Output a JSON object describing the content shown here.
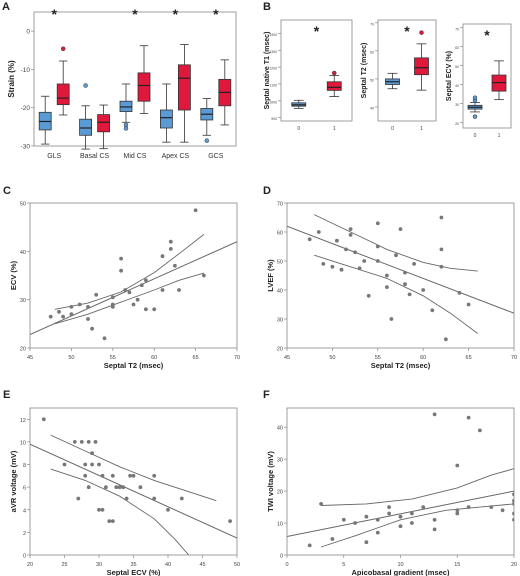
{
  "colors": {
    "group0": "#5b9bd5",
    "group1": "#e0183c",
    "points": "#777777",
    "axis": "#444444",
    "grid": "#cfcfcf"
  },
  "chart_data": [
    {
      "panel": "A",
      "type": "boxplot",
      "ylabel": "Strain (%)",
      "ylim": [
        -30,
        5
      ],
      "yticks": [
        -30,
        -20,
        -10,
        0
      ],
      "categories": [
        "GLS",
        "Basal CS",
        "Mid CS",
        "Apex CS",
        "GCS"
      ],
      "significance": [
        "*",
        "",
        "*",
        "*",
        "*"
      ],
      "groups": [
        {
          "boxes": [
            {
              "min": -29.5,
              "q1": -25.8,
              "median": -23.6,
              "q3": -21.2,
              "max": -17.0,
              "outliers": []
            },
            {
              "min": -30.8,
              "q1": -27.2,
              "median": -25.3,
              "q3": -23.0,
              "max": -19.5,
              "outliers": [
                -14.2
              ]
            },
            {
              "min": -23.8,
              "q1": -21.0,
              "median": -19.8,
              "q3": -18.3,
              "max": -13.8,
              "outliers": [
                -24.5,
                -25.4
              ]
            },
            {
              "min": -29.0,
              "q1": -25.3,
              "median": -22.6,
              "q3": -20.6,
              "max": -13.8,
              "outliers": []
            },
            {
              "min": -27.2,
              "q1": -23.2,
              "median": -21.7,
              "q3": -20.2,
              "max": -17.6,
              "outliers": [
                -28.6
              ]
            }
          ]
        },
        {
          "boxes": [
            {
              "min": -21.9,
              "q1": -19.2,
              "median": -17.5,
              "q3": -13.8,
              "max": -7.8,
              "outliers": [
                -4.6
              ]
            },
            {
              "min": -30.7,
              "q1": -26.3,
              "median": -23.8,
              "q3": -21.8,
              "max": -19.3,
              "outliers": []
            },
            {
              "min": -21.5,
              "q1": -18.3,
              "median": -14.2,
              "q3": -10.9,
              "max": -3.8,
              "outliers": []
            },
            {
              "min": -29.0,
              "q1": -20.6,
              "median": -12.3,
              "q3": -8.8,
              "max": -3.5,
              "outliers": []
            },
            {
              "min": -24.5,
              "q1": -19.5,
              "median": -16.0,
              "q3": -12.6,
              "max": -7.5,
              "outliers": []
            }
          ]
        }
      ]
    },
    {
      "panel": "B",
      "type": "boxplot",
      "ylabel": "Septal native T1 (msec)",
      "categories": [
        "0",
        "1"
      ],
      "ylim": [
        880,
        1480
      ],
      "yticks": [
        900,
        1000,
        1100,
        1200,
        1300,
        1400
      ],
      "significance": "*",
      "boxes": [
        {
          "min": 955,
          "q1": 968,
          "median": 976,
          "q3": 988,
          "max": 1003,
          "outliers": []
        },
        {
          "min": 1025,
          "q1": 1062,
          "median": 1080,
          "q3": 1113,
          "max": 1151,
          "outliers": [
            1165
          ]
        }
      ]
    },
    {
      "panel": "B",
      "type": "boxplot",
      "ylabel": "Septal T2 (msec)",
      "categories": [
        "0",
        "1"
      ],
      "ylim": [
        35,
        71
      ],
      "yticks": [
        40,
        50,
        60,
        70
      ],
      "significance": "*",
      "boxes": [
        {
          "min": 46.5,
          "q1": 48.0,
          "median": 49.0,
          "q3": 50.0,
          "max": 52.0,
          "outliers": []
        },
        {
          "min": 46.0,
          "q1": 51.5,
          "median": 54.0,
          "q3": 57.5,
          "max": 62.5,
          "outliers": [
            66.5
          ]
        }
      ]
    },
    {
      "panel": "B",
      "type": "boxplot",
      "ylabel": "Septal ECV (%)",
      "categories": [
        "0",
        "1"
      ],
      "ylim": [
        17,
        72
      ],
      "yticks": [
        20,
        30,
        40,
        50,
        60,
        70
      ],
      "significance": "*",
      "boxes": [
        {
          "min": 25.5,
          "q1": 27.0,
          "median": 28.0,
          "q3": 29.0,
          "max": 30.5,
          "outliers": [
            31.5,
            33.0,
            23.0
          ]
        },
        {
          "min": 32.0,
          "q1": 36.5,
          "median": 41.0,
          "q3": 45.0,
          "max": 52.5,
          "outliers": []
        }
      ]
    },
    {
      "panel": "C",
      "type": "scatter",
      "xlabel": "Septal T2 (msec)",
      "ylabel": "ECV (%)",
      "xlim": [
        45,
        70
      ],
      "ylim": [
        20,
        50
      ],
      "xticks": [
        45,
        50,
        55,
        60,
        65,
        70
      ],
      "yticks": [
        20,
        30,
        40,
        50
      ],
      "points": [
        [
          47.5,
          26.5
        ],
        [
          48.5,
          27.5
        ],
        [
          49,
          26.5
        ],
        [
          50,
          28.5
        ],
        [
          50,
          27
        ],
        [
          51,
          29
        ],
        [
          52,
          28.5
        ],
        [
          52,
          26
        ],
        [
          52.5,
          24
        ],
        [
          53,
          31
        ],
        [
          54,
          22
        ],
        [
          55,
          30.5
        ],
        [
          55,
          29
        ],
        [
          55,
          28.5
        ],
        [
          56,
          38.5
        ],
        [
          56,
          36
        ],
        [
          56.5,
          32
        ],
        [
          57,
          31.5
        ],
        [
          57.5,
          29
        ],
        [
          58,
          30
        ],
        [
          58.5,
          33
        ],
        [
          59,
          34
        ],
        [
          59,
          28
        ],
        [
          60,
          28
        ],
        [
          61,
          39
        ],
        [
          61,
          32
        ],
        [
          62,
          42
        ],
        [
          62,
          40.5
        ],
        [
          62.5,
          37
        ],
        [
          63,
          32
        ],
        [
          65,
          48.5
        ],
        [
          66,
          35
        ]
      ],
      "fit": [
        [
          45,
          22.8
        ],
        [
          70,
          42
        ]
      ],
      "ci_upper": [
        [
          48,
          28
        ],
        [
          52,
          29.3
        ],
        [
          56,
          31.6
        ],
        [
          60,
          35.6
        ],
        [
          63,
          39.5
        ],
        [
          66,
          43.5
        ]
      ],
      "ci_lower": [
        [
          48,
          25
        ],
        [
          52,
          27
        ],
        [
          56,
          29.5
        ],
        [
          60,
          32
        ],
        [
          63,
          34
        ],
        [
          66,
          35.5
        ]
      ]
    },
    {
      "panel": "D",
      "type": "scatter",
      "xlabel": "Septal T2 (msec)",
      "ylabel": "LVEF (%)",
      "xlim": [
        45,
        70
      ],
      "ylim": [
        20,
        70
      ],
      "xticks": [
        45,
        50,
        55,
        60,
        65,
        70
      ],
      "yticks": [
        20,
        30,
        40,
        50,
        60,
        70
      ],
      "points": [
        [
          47.5,
          57.5
        ],
        [
          48.5,
          60
        ],
        [
          49,
          49
        ],
        [
          50,
          48
        ],
        [
          50.5,
          57
        ],
        [
          51,
          47
        ],
        [
          51.5,
          54
        ],
        [
          52,
          61
        ],
        [
          52,
          59
        ],
        [
          52.5,
          53
        ],
        [
          53,
          47.5
        ],
        [
          53.5,
          50
        ],
        [
          54,
          38
        ],
        [
          55,
          63
        ],
        [
          55,
          55
        ],
        [
          55,
          50
        ],
        [
          56,
          45
        ],
        [
          56,
          41
        ],
        [
          56.5,
          30
        ],
        [
          57,
          52
        ],
        [
          57.5,
          61
        ],
        [
          58,
          46
        ],
        [
          58,
          42
        ],
        [
          58.5,
          38.5
        ],
        [
          59,
          49
        ],
        [
          60,
          40
        ],
        [
          61,
          33
        ],
        [
          62,
          54
        ],
        [
          62,
          48
        ],
        [
          62,
          65
        ],
        [
          62.5,
          23
        ],
        [
          64,
          39
        ],
        [
          65,
          35
        ]
      ],
      "fit": [
        [
          45,
          62
        ],
        [
          70,
          32
        ]
      ],
      "ci_upper": [
        [
          48,
          66
        ],
        [
          52,
          60
        ],
        [
          56,
          54
        ],
        [
          60,
          49.5
        ],
        [
          63,
          47.5
        ],
        [
          66,
          46.5
        ]
      ],
      "ci_lower": [
        [
          48,
          52
        ],
        [
          52,
          48
        ],
        [
          56,
          44
        ],
        [
          60,
          38
        ],
        [
          63,
          32
        ],
        [
          66,
          25
        ]
      ]
    },
    {
      "panel": "E",
      "type": "scatter",
      "xlabel": "Septal ECV (%)",
      "ylabel": "aVR voltage (mV)",
      "xlim": [
        20,
        50
      ],
      "ylim": [
        0,
        13
      ],
      "xticks": [
        20,
        25,
        30,
        35,
        40,
        45,
        50
      ],
      "yticks": [
        0,
        2,
        4,
        6,
        8,
        10,
        12
      ],
      "points": [
        [
          22,
          12
        ],
        [
          25,
          8
        ],
        [
          26.5,
          10
        ],
        [
          27,
          5
        ],
        [
          27.5,
          10
        ],
        [
          28,
          8
        ],
        [
          28,
          7
        ],
        [
          28.5,
          10
        ],
        [
          28.5,
          6
        ],
        [
          29,
          9
        ],
        [
          29,
          8
        ],
        [
          29.5,
          10
        ],
        [
          30,
          8
        ],
        [
          30,
          4
        ],
        [
          30.5,
          7
        ],
        [
          30.5,
          4
        ],
        [
          31,
          6
        ],
        [
          31.5,
          3
        ],
        [
          32,
          3
        ],
        [
          32,
          7
        ],
        [
          32.5,
          6
        ],
        [
          33,
          6
        ],
        [
          33.5,
          6
        ],
        [
          34,
          5
        ],
        [
          34.5,
          7
        ],
        [
          35,
          7
        ],
        [
          36,
          6
        ],
        [
          38,
          5
        ],
        [
          38,
          7
        ],
        [
          40,
          4
        ],
        [
          42,
          5
        ],
        [
          49,
          3
        ]
      ],
      "fit": [
        [
          20,
          9.8
        ],
        [
          50,
          1.5
        ]
      ],
      "ci_upper": [
        [
          23,
          10.6
        ],
        [
          28,
          9.2
        ],
        [
          33,
          7.8
        ],
        [
          38,
          6.6
        ],
        [
          43,
          5.6
        ],
        [
          47,
          4.8
        ]
      ],
      "ci_lower": [
        [
          23,
          7.6
        ],
        [
          28,
          6.6
        ],
        [
          33,
          5.2
        ],
        [
          38,
          3.2
        ],
        [
          41,
          1.4
        ],
        [
          43,
          0
        ]
      ]
    },
    {
      "panel": "F",
      "type": "scatter",
      "xlabel": "Apicobasal gradient (msec)",
      "ylabel": "TWI voltage (mV)",
      "xlim": [
        0,
        20
      ],
      "ylim": [
        0,
        46
      ],
      "xticks": [
        0,
        5,
        10,
        15,
        20
      ],
      "yticks": [
        0,
        10,
        20,
        30,
        40
      ],
      "points": [
        [
          2,
          3
        ],
        [
          3,
          16
        ],
        [
          4,
          5
        ],
        [
          5,
          11
        ],
        [
          6,
          10
        ],
        [
          7,
          12
        ],
        [
          7,
          4
        ],
        [
          8,
          7
        ],
        [
          8,
          11
        ],
        [
          9,
          13
        ],
        [
          9,
          15
        ],
        [
          10,
          12
        ],
        [
          10,
          9
        ],
        [
          11,
          13
        ],
        [
          11,
          10
        ],
        [
          12,
          15
        ],
        [
          13,
          11
        ],
        [
          13,
          8
        ],
        [
          13,
          44
        ],
        [
          15,
          14
        ],
        [
          15,
          13
        ],
        [
          15,
          28
        ],
        [
          16,
          15
        ],
        [
          16,
          43
        ],
        [
          17,
          39
        ],
        [
          18,
          15
        ],
        [
          19,
          14
        ],
        [
          20,
          19
        ],
        [
          20,
          17
        ],
        [
          20,
          16
        ],
        [
          20,
          13
        ],
        [
          20,
          11
        ]
      ],
      "fit": [
        [
          0,
          5.8
        ],
        [
          20,
          20
        ]
      ],
      "ci_upper": [
        [
          3,
          15.5
        ],
        [
          7,
          16
        ],
        [
          11,
          17.5
        ],
        [
          15,
          21
        ],
        [
          18,
          25
        ],
        [
          20,
          27
        ]
      ],
      "ci_lower": [
        [
          3,
          2.5
        ],
        [
          6,
          6
        ],
        [
          10,
          11
        ],
        [
          14,
          14
        ],
        [
          17,
          15
        ],
        [
          20,
          16
        ]
      ]
    }
  ]
}
